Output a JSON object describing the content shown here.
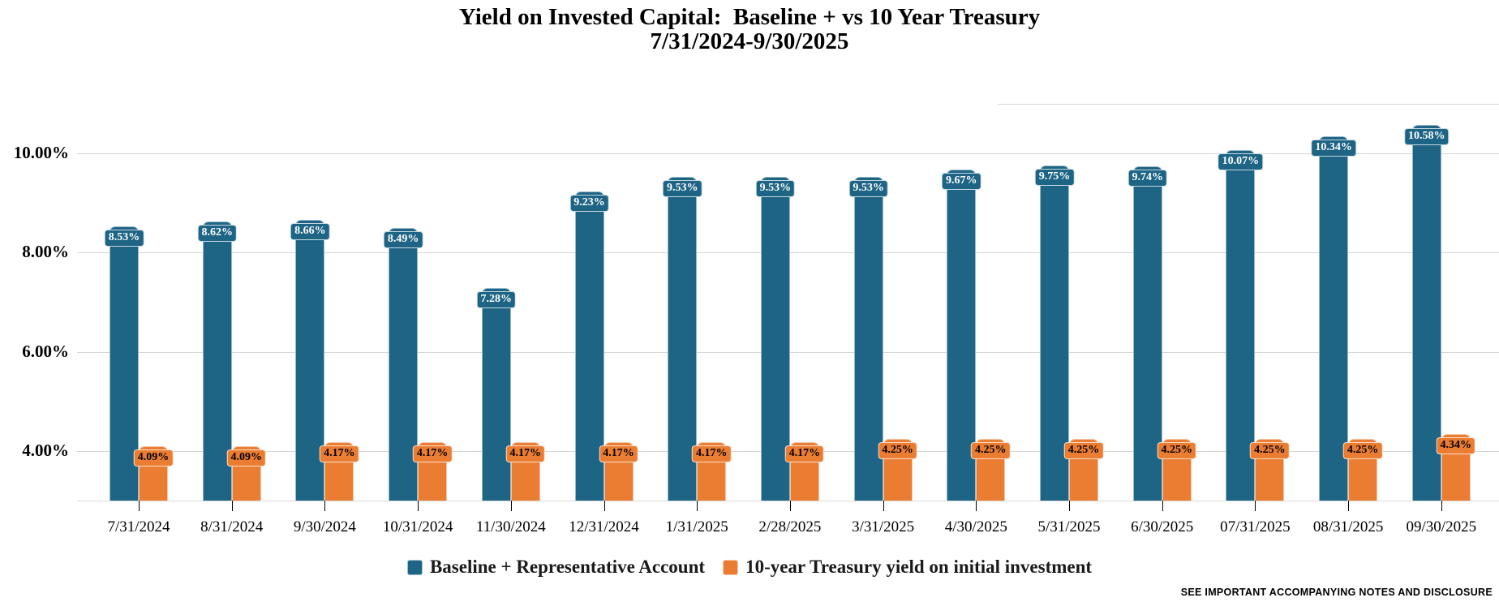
{
  "title": {
    "line1": "Yield on Invested Capital:  Baseline + vs 10 Year Treasury",
    "line2": "7/31/2024-9/30/2025"
  },
  "chart_data": {
    "type": "bar",
    "categories": [
      "7/31/2024",
      "8/31/2024",
      "9/30/2024",
      "10/31/2024",
      "11/30/2024",
      "12/31/2024",
      "1/31/2025",
      "2/28/2025",
      "3/31/2025",
      "4/30/2025",
      "5/31/2025",
      "6/30/2025",
      "07/31/2025",
      "08/31/2025",
      "09/30/2025"
    ],
    "series": [
      {
        "name": "Baseline + Representative Account",
        "color": "#1D6485",
        "label_text_color": "#FFFFFF",
        "values": [
          8.53,
          8.62,
          8.66,
          8.49,
          7.28,
          9.23,
          9.53,
          9.53,
          9.53,
          9.67,
          9.75,
          9.74,
          10.07,
          10.34,
          10.58
        ],
        "labels": [
          "8.53%",
          "8.62%",
          "8.66%",
          "8.49%",
          "7.28%",
          "9.23%",
          "9.53%",
          "9.53%",
          "9.53%",
          "9.67%",
          "9.75%",
          "9.74%",
          "10.07%",
          "10.34%",
          "10.58%"
        ]
      },
      {
        "name": "10-year Treasury yield on initial investment",
        "color": "#EB7D32",
        "label_text_color": "#000000",
        "values": [
          4.09,
          4.09,
          4.17,
          4.17,
          4.17,
          4.17,
          4.17,
          4.17,
          4.25,
          4.25,
          4.25,
          4.25,
          4.25,
          4.25,
          4.34
        ],
        "labels": [
          "4.09%",
          "4.09%",
          "4.17%",
          "4.17%",
          "4.17%",
          "4.17%",
          "4.17%",
          "4.17%",
          "4.25%",
          "4.25%",
          "4.25%",
          "4.25%",
          "4.25%",
          "4.25%",
          "4.34%"
        ]
      }
    ],
    "ylim": [
      3,
      11
    ],
    "yticks": [
      {
        "value": 10,
        "label": "10.00%"
      },
      {
        "value": 8,
        "label": "8.00%"
      },
      {
        "value": 6,
        "label": "6.00%"
      },
      {
        "value": 4,
        "label": "4.00%"
      }
    ],
    "grid": true,
    "data_labels": true,
    "legend_position": "bottom",
    "gridline_color": "#d6d6d6"
  },
  "footer": {
    "disclosure": "SEE IMPORTANT ACCOMPANYING NOTES AND DISCLOSURE"
  }
}
